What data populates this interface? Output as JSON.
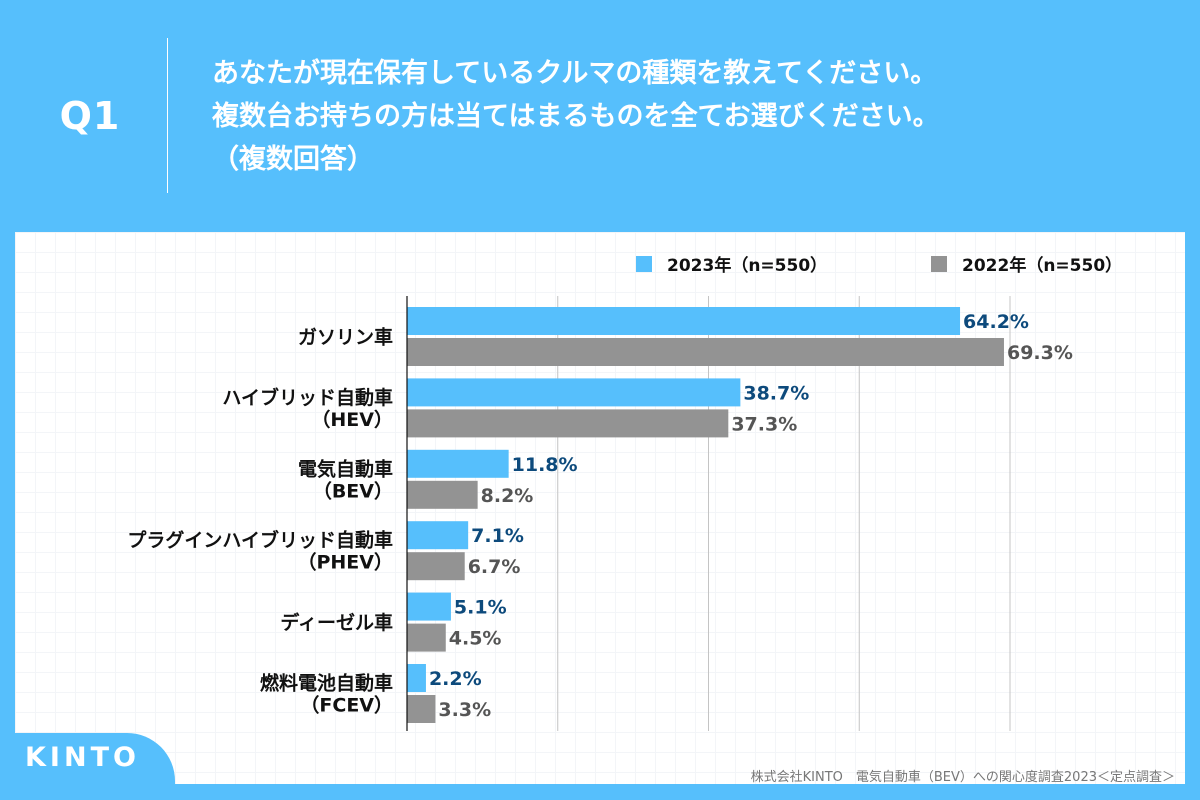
{
  "header": {
    "question_number": "Q1",
    "question_lines": [
      "あなたが現在保有しているクルマの種類を教えてください。",
      "複数台お持ちの方は当てはまるものを全てお選びください。",
      "（複数回答）"
    ]
  },
  "colors": {
    "background": "#56bffc",
    "series_2023": "#56bffc",
    "series_2022": "#939393",
    "label_2023": "#0d4a7c",
    "label_2022": "#555555"
  },
  "chart_data": {
    "type": "bar",
    "orientation": "horizontal",
    "title": "あなたが現在保有しているクルマの種類を教えてください。（複数回答）",
    "xlabel": "",
    "ylabel": "",
    "xlim": [
      0,
      70
    ],
    "grid": true,
    "legend_position": "top-right",
    "categories": [
      [
        "ガソリン車"
      ],
      [
        "ハイブリッド自動車",
        "（HEV）"
      ],
      [
        "電気自動車",
        "（BEV）"
      ],
      [
        "プラグインハイブリッド自動車",
        "（PHEV）"
      ],
      [
        "ディーゼル車"
      ],
      [
        "燃料電池自動車",
        "（FCEV）"
      ]
    ],
    "series": [
      {
        "name": "2023年（n=550）",
        "values": [
          64.2,
          38.7,
          11.8,
          7.1,
          5.1,
          2.2
        ],
        "labels": [
          "64.2%",
          "38.7%",
          "11.8%",
          "7.1%",
          "5.1%",
          "2.2%"
        ]
      },
      {
        "name": "2022年（n=550）",
        "values": [
          69.3,
          37.3,
          8.2,
          6.7,
          4.5,
          3.3
        ],
        "labels": [
          "69.3%",
          "37.3%",
          "8.2%",
          "6.7%",
          "4.5%",
          "3.3%"
        ]
      }
    ]
  },
  "footer": {
    "source": "株式会社KINTO　電気自動車（BEV）への関心度調査2023＜定点調査＞",
    "logo": "KINTO"
  }
}
